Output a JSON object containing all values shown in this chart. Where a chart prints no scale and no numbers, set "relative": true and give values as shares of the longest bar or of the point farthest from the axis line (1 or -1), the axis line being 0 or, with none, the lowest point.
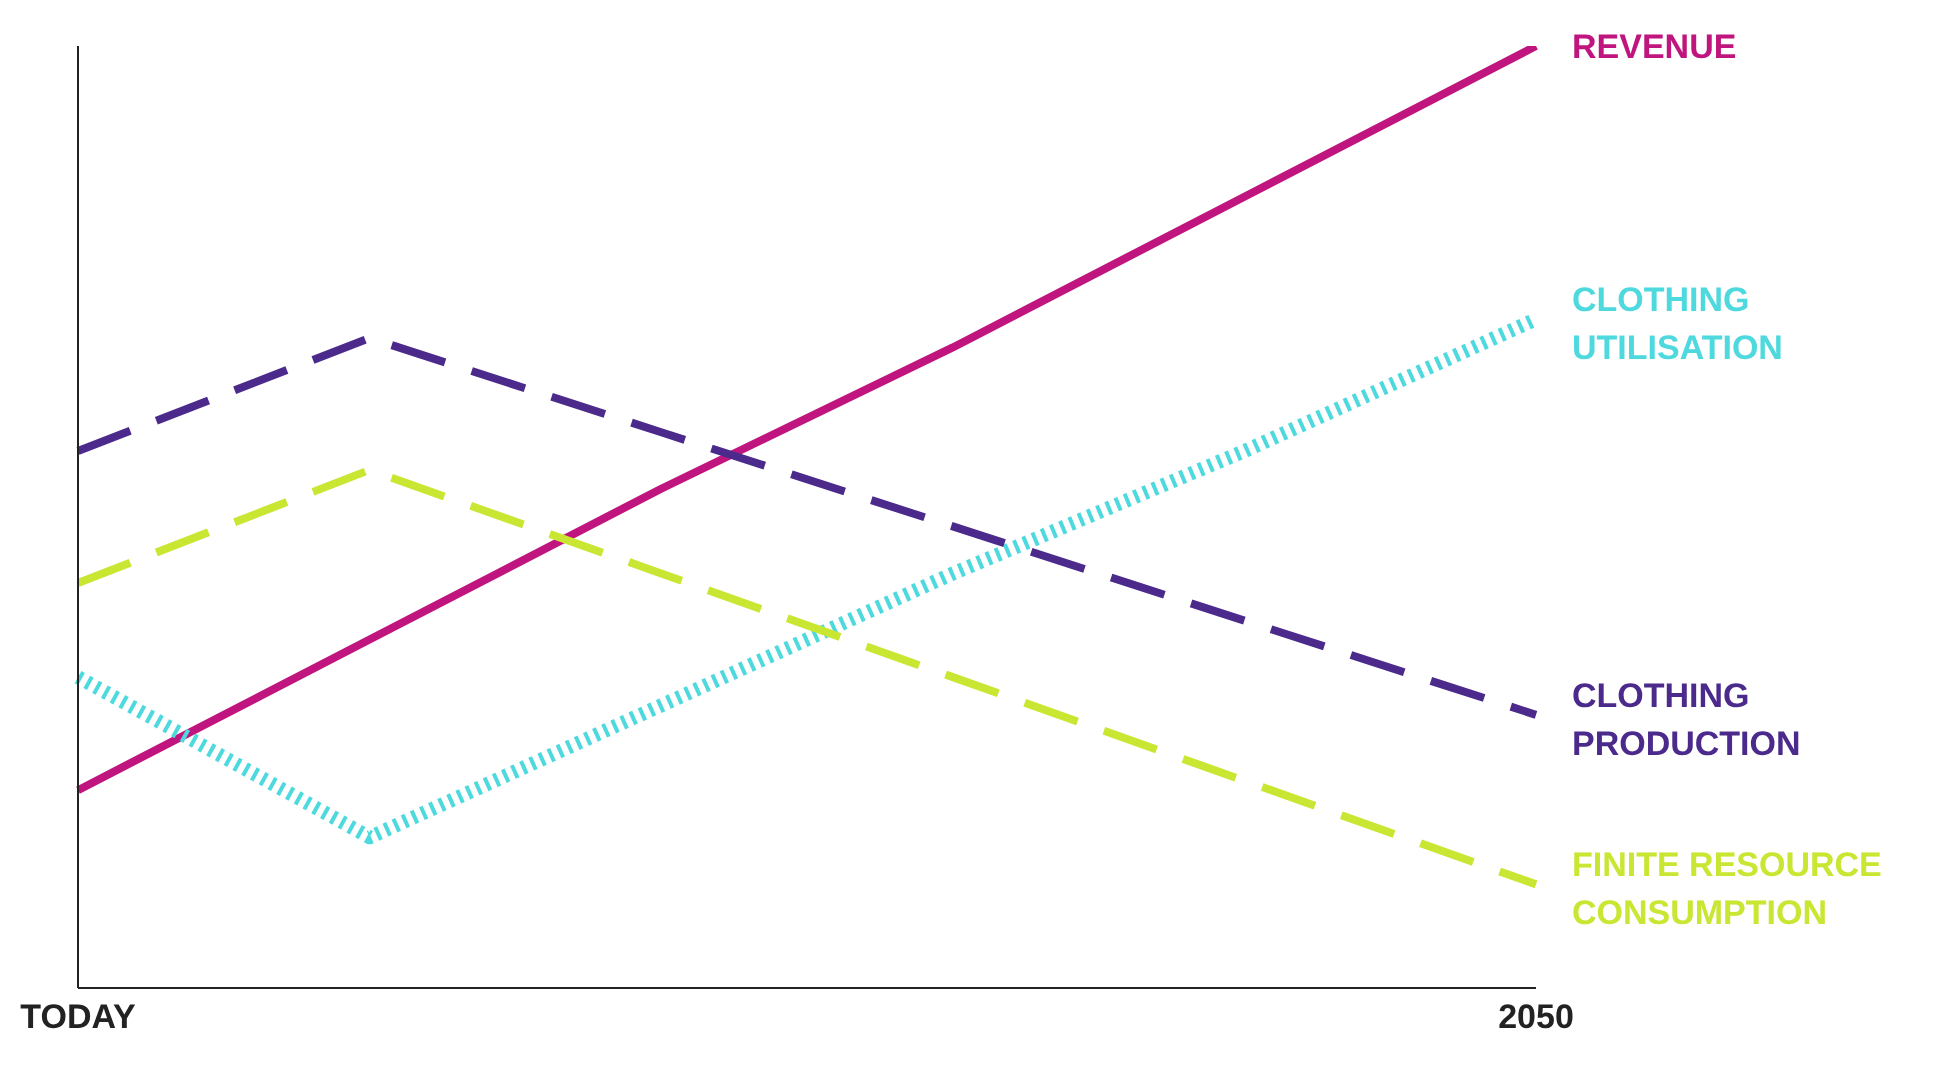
{
  "chart_data": {
    "type": "line",
    "relative": true,
    "categories": [
      "TODAY",
      null,
      null,
      null,
      null,
      "2050"
    ],
    "grid": false,
    "legend": false,
    "marker": "none",
    "series": [
      {
        "name": "REVENUE",
        "color": "#c0157f",
        "values": [
          0.21,
          0.37,
          0.53,
          0.68,
          0.84,
          1
        ],
        "line_style": "solid"
      },
      {
        "name": "CLOTHING UTILISATION",
        "color": "#4dd9de",
        "values": [
          0.33,
          0.16,
          0.3,
          0.44,
          0.57,
          0.71
        ],
        "line_style": "dotted"
      },
      {
        "name": "CLOTHING PRODUCTION",
        "color": "#4b2a8c",
        "values": [
          0.57,
          0.69,
          0.59,
          0.49,
          0.39,
          0.29
        ],
        "line_style": "dashed"
      },
      {
        "name": "FINITE RESOURCE CONSUMPTION",
        "color": "#c8e632",
        "values": [
          0.43,
          0.55,
          0.44,
          0.33,
          0.22,
          0.11
        ],
        "line_style": "dashed"
      }
    ]
  }
}
